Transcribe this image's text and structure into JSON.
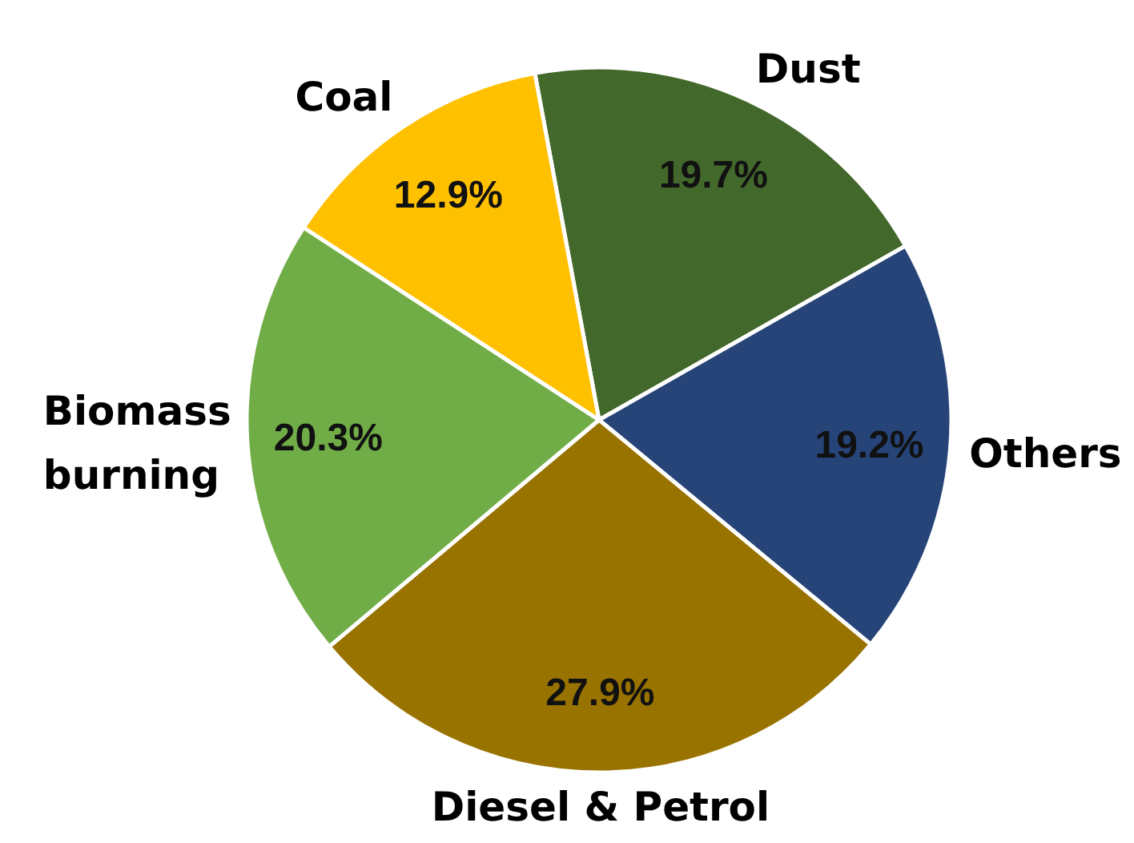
{
  "chart_data": {
    "type": "pie",
    "categories": [
      "Dust",
      "Others",
      "Diesel & Petrol",
      "Biomass burning",
      "Coal"
    ],
    "values": [
      19.7,
      19.2,
      27.9,
      20.3,
      12.9
    ],
    "colors": [
      "#43682b",
      "#264478",
      "#997300",
      "#70ad47",
      "#ffc000"
    ],
    "value_labels": [
      "19.7%",
      "19.2%",
      "27.9%",
      "20.3%",
      "12.9%"
    ]
  }
}
